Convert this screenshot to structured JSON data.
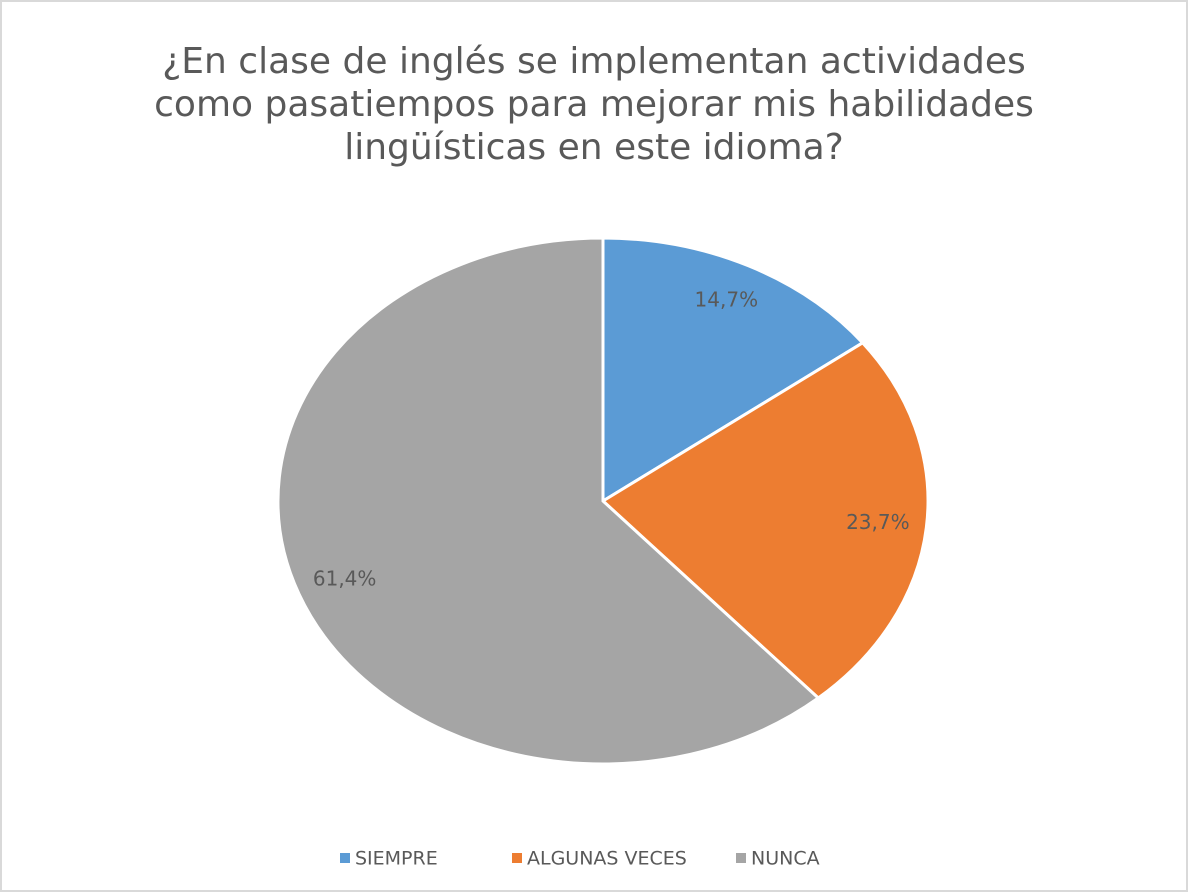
{
  "chart_data": {
    "type": "pie",
    "title": [
      "¿En clase de inglés se implementan actividades",
      "como pasatiempos para mejorar mis habilidades",
      "lingüísticas en este idioma?"
    ],
    "categories": [
      "SIEMPRE",
      "ALGUNAS VECES",
      "NUNCA"
    ],
    "values": [
      14.7,
      23.7,
      61.4
    ],
    "value_labels": [
      "14,7%",
      "23,7%",
      "61,4%"
    ],
    "colors": [
      "#5b9bd5",
      "#ed7d31",
      "#a5a5a5"
    ],
    "legend": "bottom"
  }
}
